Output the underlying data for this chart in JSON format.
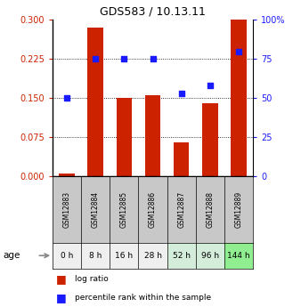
{
  "title": "GDS583 / 10.13.11",
  "categories": [
    "GSM12883",
    "GSM12884",
    "GSM12885",
    "GSM12886",
    "GSM12887",
    "GSM12888",
    "GSM12889"
  ],
  "age_labels": [
    "0 h",
    "8 h",
    "16 h",
    "28 h",
    "52 h",
    "96 h",
    "144 h"
  ],
  "log_ratio": [
    0.005,
    0.285,
    0.15,
    0.155,
    0.065,
    0.14,
    0.3
  ],
  "percentile_rank": [
    50,
    75,
    75,
    75,
    53,
    58,
    80
  ],
  "bar_color": "#cc2200",
  "dot_color": "#1a1aff",
  "left_yticks": [
    0,
    0.075,
    0.15,
    0.225,
    0.3
  ],
  "left_ylim": [
    0,
    0.3
  ],
  "right_yticks": [
    0,
    25,
    50,
    75,
    100
  ],
  "right_ylim": [
    0,
    100
  ],
  "left_tick_color": "#cc2200",
  "right_tick_color": "#1a1aff",
  "age_bg_colors": [
    "#efefef",
    "#efefef",
    "#efefef",
    "#efefef",
    "#d4edda",
    "#d4edda",
    "#90ee90"
  ],
  "gsm_bg_color": "#c8c8c8",
  "arrow_color": "#888888",
  "grid_yticks": [
    0.075,
    0.15,
    0.225
  ]
}
